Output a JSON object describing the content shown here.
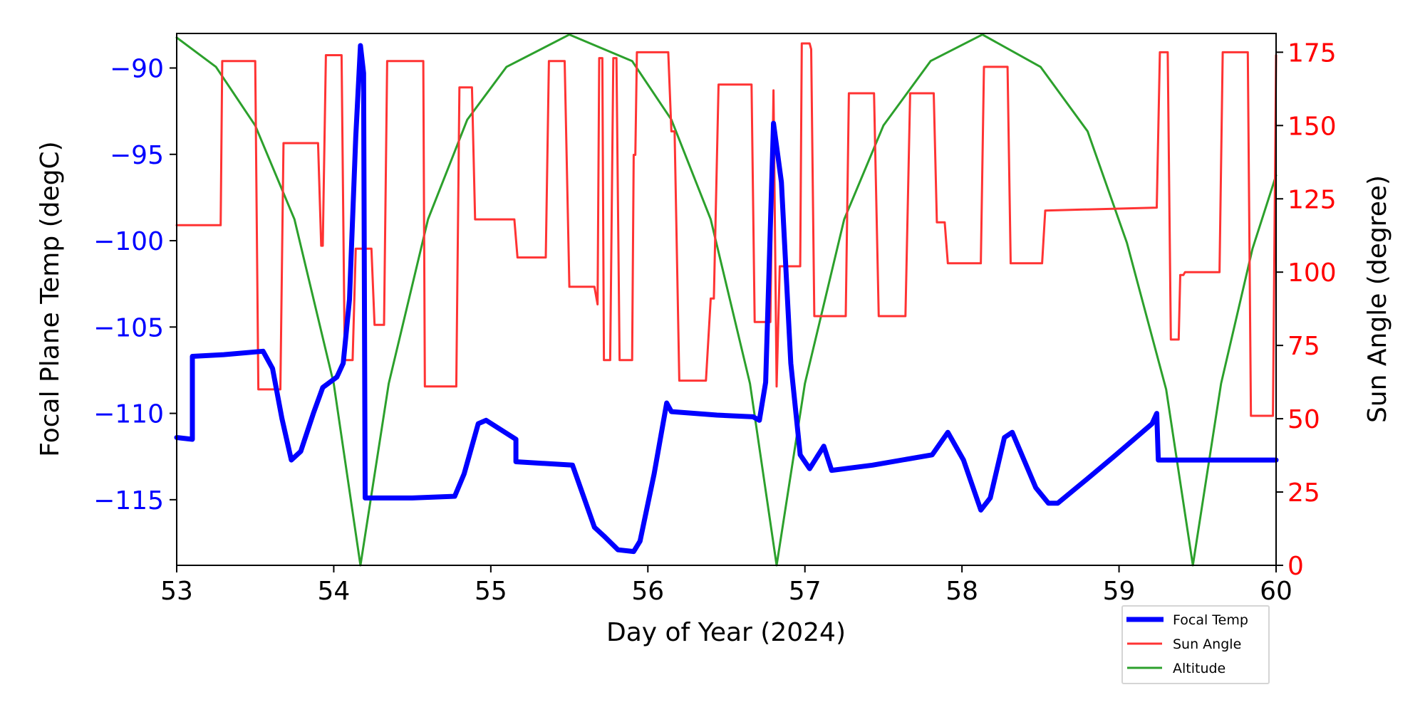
{
  "chart_data": {
    "type": "line",
    "xlabel": "Day of Year (2024)",
    "ylabel_left": "Focal Plane Temp (degC)",
    "ylabel_right": "Sun Angle (degree)",
    "xlim": [
      53,
      60
    ],
    "ylim_left": [
      -118.8,
      -88
    ],
    "ylim_right": [
      0,
      181.4
    ],
    "x_ticks": [
      53,
      54,
      55,
      56,
      57,
      58,
      59,
      60
    ],
    "y_ticks_left": [
      -90,
      -95,
      -100,
      -105,
      -110,
      -115
    ],
    "y_ticks_right": [
      0,
      25,
      50,
      75,
      100,
      125,
      150,
      175
    ],
    "grid": false,
    "legend_placement": "below-right",
    "colors": {
      "left_axis": "#0000ff",
      "right_axis": "#ff0000",
      "focal": "#0000ff",
      "sun": "#ff3333",
      "altitude": "#2ca02c"
    },
    "series": [
      {
        "name": "Focal Temp",
        "axis": "left",
        "x": [
          53.0,
          53.1,
          53.1,
          53.3,
          53.55,
          53.61,
          53.67,
          53.73,
          53.79,
          53.87,
          53.93,
          54.02,
          54.06,
          54.1,
          54.14,
          54.17,
          54.19,
          54.2,
          54.5,
          54.77,
          54.83,
          54.92,
          54.97,
          55.09,
          55.16,
          55.16,
          55.52,
          55.66,
          55.72,
          55.81,
          55.91,
          55.95,
          56.04,
          56.12,
          56.15,
          56.44,
          56.67,
          56.71,
          56.75,
          56.8,
          56.85,
          56.91,
          56.97,
          57.03,
          57.12,
          57.17,
          57.43,
          57.81,
          57.91,
          58.01,
          58.12,
          58.18,
          58.27,
          58.32,
          58.47,
          58.55,
          58.61,
          58.81,
          58.98,
          59.21,
          59.24,
          59.25,
          60.0
        ],
        "y": [
          -111.4,
          -111.5,
          -106.7,
          -106.6,
          -106.4,
          -107.4,
          -110.3,
          -112.7,
          -112.2,
          -110.0,
          -108.5,
          -107.9,
          -107.1,
          -103.4,
          -94.0,
          -88.7,
          -90.3,
          -114.9,
          -114.9,
          -114.8,
          -113.5,
          -110.6,
          -110.4,
          -111.1,
          -111.5,
          -112.8,
          -113.0,
          -116.6,
          -117.1,
          -117.9,
          -118.0,
          -117.4,
          -113.5,
          -109.4,
          -109.9,
          -110.1,
          -110.2,
          -110.4,
          -108.2,
          -93.2,
          -96.6,
          -107.1,
          -112.4,
          -113.2,
          -111.9,
          -113.3,
          -113.0,
          -112.4,
          -111.1,
          -112.7,
          -115.6,
          -114.9,
          -111.4,
          -111.1,
          -114.3,
          -115.2,
          -115.2,
          -113.7,
          -112.4,
          -110.6,
          -110.0,
          -112.7,
          -112.7
        ]
      },
      {
        "name": "Sun Angle",
        "axis": "right",
        "x": [
          53.0,
          53.28,
          53.29,
          53.5,
          53.52,
          53.66,
          53.68,
          53.9,
          53.92,
          53.93,
          53.95,
          54.05,
          54.07,
          54.12,
          54.14,
          54.24,
          54.26,
          54.32,
          54.34,
          54.57,
          54.58,
          54.78,
          54.8,
          54.88,
          54.9,
          55.15,
          55.17,
          55.35,
          55.37,
          55.47,
          55.5,
          55.66,
          55.68,
          55.69,
          55.71,
          55.72,
          55.76,
          55.78,
          55.8,
          55.82,
          55.9,
          55.91,
          55.92,
          55.93,
          56.13,
          56.15,
          56.17,
          56.2,
          56.37,
          56.4,
          56.42,
          56.45,
          56.66,
          56.68,
          56.78,
          56.8,
          56.82,
          56.84,
          56.97,
          56.98,
          57.03,
          57.04,
          57.06,
          57.26,
          57.28,
          57.44,
          57.47,
          57.64,
          57.67,
          57.82,
          57.84,
          57.89,
          57.91,
          58.12,
          58.14,
          58.29,
          58.31,
          58.51,
          58.53,
          59.24,
          59.26,
          59.31,
          59.33,
          59.38,
          59.39,
          59.41,
          59.42,
          59.64,
          59.66,
          59.82,
          59.84,
          59.98,
          60.0
        ],
        "y": [
          116,
          116,
          172,
          172,
          60,
          60,
          144,
          144,
          109,
          109,
          174,
          174,
          70,
          70,
          108,
          108,
          82,
          82,
          172,
          172,
          61,
          61,
          163,
          163,
          118,
          118,
          105,
          105,
          172,
          172,
          95,
          95,
          89,
          173,
          173,
          70,
          70,
          173,
          173,
          70,
          70,
          140,
          140,
          175,
          175,
          148,
          148,
          63,
          63,
          91,
          91,
          164,
          164,
          83,
          83,
          162,
          61,
          102,
          102,
          178,
          178,
          176,
          85,
          85,
          161,
          161,
          85,
          85,
          161,
          161,
          117,
          117,
          103,
          103,
          170,
          170,
          103,
          103,
          121,
          122,
          175,
          175,
          77,
          77,
          99,
          99,
          100,
          100,
          175,
          175,
          51,
          51,
          174
        ]
      },
      {
        "name": "Altitude",
        "axis": "right",
        "x": [
          53.0,
          53.25,
          53.5,
          53.75,
          54.0,
          54.17,
          54.35,
          54.6,
          54.85,
          55.1,
          55.5,
          55.9,
          56.15,
          56.4,
          56.65,
          56.82,
          57.0,
          57.25,
          57.5,
          57.8,
          58.13,
          58.5,
          58.8,
          59.05,
          59.3,
          59.47,
          59.65,
          59.85,
          60.0
        ],
        "y": [
          180,
          170,
          150,
          118,
          62,
          0,
          62,
          118,
          152,
          170,
          181,
          172,
          152,
          118,
          62,
          0,
          62,
          118,
          150,
          172,
          181,
          170,
          148,
          110,
          60,
          0,
          62,
          108,
          133
        ]
      }
    ]
  }
}
